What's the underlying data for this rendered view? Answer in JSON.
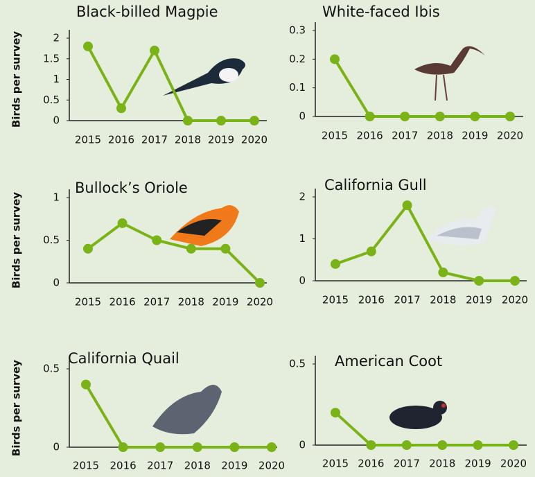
{
  "chart_data": [
    {
      "type": "line",
      "title": "Black-billed Magpie",
      "y_label": "Birds per survey",
      "categories": [
        "2015",
        "2016",
        "2017",
        "2018",
        "2019",
        "2020"
      ],
      "values": [
        1.8,
        0.3,
        1.7,
        0,
        0,
        0
      ],
      "color": "#7ab317",
      "ylim": [
        0,
        2
      ],
      "yticks": [
        0,
        0.5,
        1,
        1.5,
        2
      ]
    },
    {
      "type": "line",
      "title": "White-faced Ibis",
      "categories": [
        "2015",
        "2016",
        "2017",
        "2018",
        "2019",
        "2020"
      ],
      "values": [
        0.2,
        0,
        0,
        0,
        0,
        0
      ],
      "color": "#7ab317",
      "ylim": [
        0,
        0.3
      ],
      "yticks": [
        0,
        0.1,
        0.2,
        0.3
      ]
    },
    {
      "type": "line",
      "title": "Bullock’s Oriole",
      "y_label": "Birds per survey",
      "categories": [
        "2015",
        "2016",
        "2017",
        "2018",
        "2019",
        "2020"
      ],
      "values": [
        0.4,
        0.7,
        0.5,
        0.4,
        0.4,
        0
      ],
      "color": "#7ab317",
      "ylim": [
        0,
        1
      ],
      "yticks": [
        0,
        0.5,
        1
      ]
    },
    {
      "type": "line",
      "title": "California Gull",
      "categories": [
        "2015",
        "2016",
        "2017",
        "2018",
        "2019",
        "2020"
      ],
      "values": [
        0.4,
        0.7,
        1.8,
        0.2,
        0,
        0
      ],
      "color": "#7ab317",
      "ylim": [
        0,
        2
      ],
      "yticks": [
        0,
        1,
        2
      ]
    },
    {
      "type": "line",
      "title": "California Quail",
      "y_label": "Birds per survey",
      "categories": [
        "2015",
        "2016",
        "2017",
        "2018",
        "2019",
        "2020"
      ],
      "values": [
        0.4,
        0,
        0,
        0,
        0,
        0
      ],
      "color": "#7ab317",
      "ylim": [
        0,
        0.5
      ],
      "yticks": [
        0,
        0.5
      ]
    },
    {
      "type": "line",
      "title": "American Coot",
      "categories": [
        "2015",
        "2016",
        "2017",
        "2018",
        "2019",
        "2020"
      ],
      "values": [
        0.2,
        0,
        0,
        0,
        0,
        0
      ],
      "color": "#7ab317",
      "ylim": [
        0,
        0.5
      ],
      "yticks": [
        0,
        0.5
      ]
    }
  ]
}
